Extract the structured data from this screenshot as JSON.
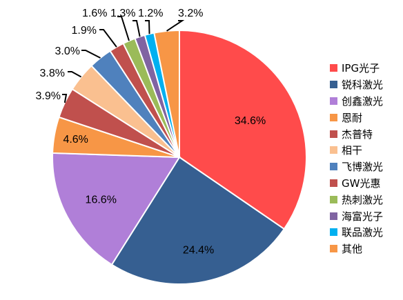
{
  "chart_data": {
    "type": "pie",
    "title": "",
    "legend_position": "right",
    "slices": [
      {
        "name": "IPG光子",
        "value": 34.6,
        "label": "34.6%",
        "color": "#ff4b4b"
      },
      {
        "name": "锐科激光",
        "value": 24.4,
        "label": "24.4%",
        "color": "#365f91"
      },
      {
        "name": "创鑫激光",
        "value": 16.6,
        "label": "16.6%",
        "color": "#b07fd8"
      },
      {
        "name": "恩耐",
        "value": 4.6,
        "label": "4.6%",
        "color": "#f79646"
      },
      {
        "name": "杰普特",
        "value": 3.9,
        "label": "3.9%",
        "color": "#c0504d"
      },
      {
        "name": "相干",
        "value": 3.8,
        "label": "3.8%",
        "color": "#fac090"
      },
      {
        "name": "飞博激光",
        "value": 3.0,
        "label": "3.0%",
        "color": "#4f81bd"
      },
      {
        "name": "GW光惠",
        "value": 1.9,
        "label": "1.9%",
        "color": "#c0504d"
      },
      {
        "name": "热刺激光",
        "value": 1.6,
        "label": "1.6%",
        "color": "#9bbb59"
      },
      {
        "name": "海富光子",
        "value": 1.3,
        "label": "1.3%",
        "color": "#8064a2"
      },
      {
        "name": "联品激光",
        "value": 1.2,
        "label": "1.2%",
        "color": "#00b0f0"
      },
      {
        "name": "其他",
        "value": 3.2,
        "label": "3.2%",
        "color": "#f79646"
      }
    ]
  }
}
